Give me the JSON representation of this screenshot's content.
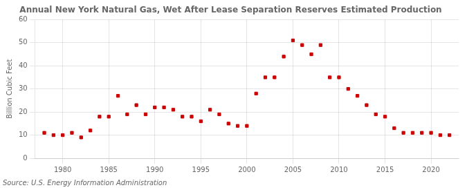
{
  "chart_data": {
    "type": "scatter",
    "title": "Annual New York Natural Gas, Wet After Lease Separation Reserves Estimated Production",
    "ylabel": "Billion Cubic Feet",
    "annotation": "Source: U.S. Energy Information Administration",
    "x": [
      1978,
      1979,
      1980,
      1981,
      1982,
      1983,
      1984,
      1985,
      1986,
      1987,
      1988,
      1989,
      1990,
      1991,
      1992,
      1993,
      1994,
      1995,
      1996,
      1997,
      1998,
      1999,
      2000,
      2001,
      2002,
      2003,
      2004,
      2005,
      2006,
      2007,
      2008,
      2009,
      2010,
      2011,
      2012,
      2013,
      2014,
      2015,
      2016,
      2017,
      2018,
      2019,
      2020,
      2021,
      2022
    ],
    "values": [
      11,
      10,
      10,
      11,
      9,
      12,
      18,
      18,
      27,
      19,
      23,
      19,
      22,
      22,
      21,
      18,
      18,
      16,
      21,
      19,
      15,
      14,
      14,
      28,
      35,
      35,
      44,
      51,
      49,
      45,
      49,
      35,
      35,
      30,
      27,
      23,
      19,
      18,
      13,
      11,
      11,
      11,
      11,
      10,
      10
    ],
    "color": "#cc0000",
    "marker": "square",
    "xlim": [
      1977,
      2023
    ],
    "ylim": [
      0,
      60
    ],
    "xticks": [
      1980,
      1985,
      1990,
      1995,
      2000,
      2005,
      2010,
      2015,
      2020
    ],
    "yticks": [
      0,
      10,
      20,
      30,
      40,
      50,
      60
    ],
    "grid": true
  }
}
